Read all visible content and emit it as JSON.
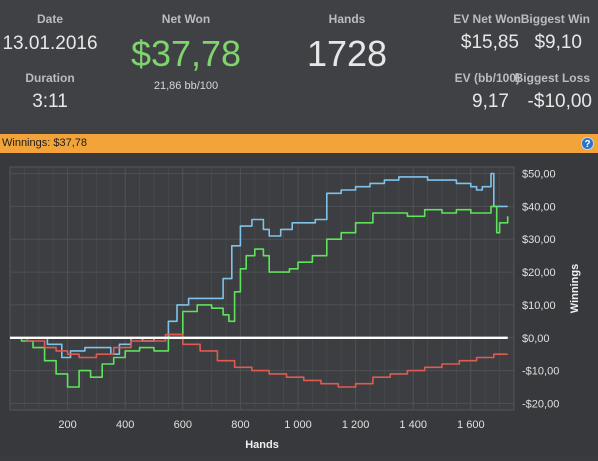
{
  "stats": {
    "date": {
      "label": "Date",
      "value": "13.01.2016"
    },
    "duration": {
      "label": "Duration",
      "value": "3:11"
    },
    "net_won": {
      "label": "Net Won",
      "value": "$37,78",
      "sub": "21,86 bb/100"
    },
    "hands": {
      "label": "Hands",
      "value": "1728"
    },
    "ev_net_won": {
      "label": "EV Net Won",
      "value": "$15,85"
    },
    "biggest_win": {
      "label": "Biggest Win",
      "value": "$9,10"
    },
    "ev_bb100": {
      "label": "EV (bb/100)",
      "value": "9,17"
    },
    "biggest_loss": {
      "label": "Biggest Loss",
      "value": "-$10,00"
    }
  },
  "winnings_bar": {
    "label": "Winnings: $37,78",
    "help_icon": "question-circle-icon"
  },
  "chart_data": {
    "type": "line",
    "xlabel": "Hands",
    "ylabel": "Winnings",
    "xlim": [
      0,
      1750
    ],
    "ylim": [
      -22,
      52
    ],
    "x_ticks": [
      200,
      400,
      600,
      800,
      1000,
      1200,
      1400,
      1600
    ],
    "x_tick_labels": [
      "200",
      "400",
      "600",
      "800",
      "1 000",
      "1 200",
      "1 400",
      "1 600"
    ],
    "y_ticks": [
      -20,
      -10,
      0,
      10,
      20,
      30,
      40,
      50
    ],
    "y_tick_labels": [
      "-$20,00",
      "-$10,00",
      "$0,00",
      "$10,00",
      "$20,00",
      "$30,00",
      "$40,00",
      "$50,00"
    ],
    "grid": true,
    "series": [
      {
        "color": "#7fc3ea",
        "x": [
          0,
          60,
          100,
          130,
          180,
          210,
          260,
          310,
          350,
          380,
          420,
          460,
          500,
          550,
          580,
          620,
          660,
          700,
          740,
          770,
          800,
          840,
          880,
          900,
          940,
          980,
          1020,
          1060,
          1100,
          1150,
          1200,
          1250,
          1300,
          1350,
          1400,
          1450,
          1500,
          1550,
          1600,
          1620,
          1640,
          1670,
          1680,
          1700,
          1728
        ],
        "y": [
          0,
          0,
          0,
          -2,
          -6,
          -4,
          -3,
          -3,
          -5,
          -2,
          0,
          -1,
          0,
          5,
          10,
          12,
          12,
          12,
          18,
          28,
          34,
          36,
          33,
          31,
          33,
          35,
          35,
          36,
          44,
          45,
          46,
          47,
          48,
          49,
          49,
          48,
          48,
          47,
          46,
          45,
          46,
          50,
          40,
          40,
          40
        ]
      },
      {
        "color": "#5fe35a",
        "x": [
          0,
          40,
          80,
          120,
          160,
          200,
          240,
          280,
          320,
          360,
          400,
          450,
          500,
          550,
          600,
          650,
          700,
          740,
          760,
          780,
          800,
          820,
          850,
          880,
          900,
          940,
          970,
          1000,
          1050,
          1100,
          1150,
          1200,
          1260,
          1320,
          1380,
          1440,
          1500,
          1550,
          1600,
          1640,
          1670,
          1690,
          1700,
          1728
        ],
        "y": [
          0,
          -1,
          -3,
          -7,
          -11,
          -15,
          -10,
          -12,
          -8,
          -6,
          -4,
          -3,
          -4,
          1,
          8,
          10,
          9,
          7,
          5,
          14,
          21,
          25,
          27,
          25,
          20,
          20,
          21,
          23,
          25,
          30,
          32,
          35,
          38,
          38,
          37,
          39,
          38,
          39,
          38,
          38,
          40,
          32,
          35,
          37
        ]
      },
      {
        "color": "#e05a52",
        "x": [
          0,
          60,
          120,
          160,
          200,
          240,
          300,
          360,
          420,
          480,
          540,
          600,
          660,
          720,
          780,
          840,
          900,
          960,
          1020,
          1080,
          1140,
          1200,
          1260,
          1320,
          1380,
          1440,
          1500,
          1560,
          1620,
          1680,
          1728
        ],
        "y": [
          0,
          -1,
          -3,
          -4,
          -5,
          -6,
          -5,
          -3,
          -1,
          -1,
          1,
          -2,
          -4,
          -7,
          -9,
          -10,
          -11,
          -12,
          -13,
          -14,
          -15,
          -14,
          -12,
          -11,
          -10,
          -9,
          -8,
          -7,
          -6,
          -5,
          -5
        ]
      },
      {
        "color": "#ffffff",
        "x": [
          0,
          1728
        ],
        "y": [
          0,
          0
        ]
      }
    ]
  }
}
